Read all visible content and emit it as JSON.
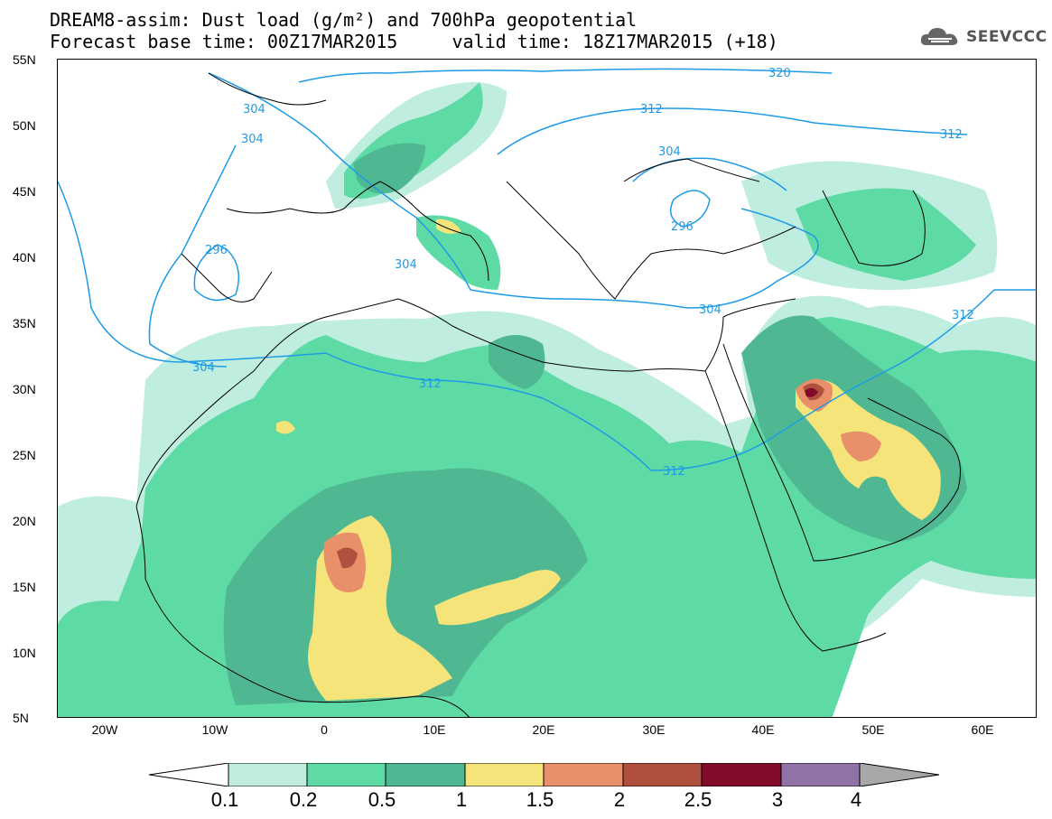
{
  "header": {
    "title_line1": "DREAM8-assim: Dust load (g/m²) and 700hPa geopotential",
    "title_line2": "Forecast base time: 00Z17MAR2015     valid time: 18Z17MAR2015 (+18)",
    "logo_text": "SEEVCCC"
  },
  "map": {
    "lat_labels": [
      "55N",
      "50N",
      "45N",
      "40N",
      "35N",
      "30N",
      "25N",
      "20N",
      "15N",
      "10N",
      "5N"
    ],
    "lon_labels": [
      "20W",
      "10W",
      "0",
      "10E",
      "20E",
      "30E",
      "40E",
      "50E",
      "60E"
    ],
    "contour_labels": [
      {
        "text": "320"
      },
      {
        "text": "312"
      },
      {
        "text": "312"
      },
      {
        "text": "304"
      },
      {
        "text": "304"
      },
      {
        "text": "304"
      },
      {
        "text": "296"
      },
      {
        "text": "296"
      },
      {
        "text": "304"
      },
      {
        "text": "304"
      },
      {
        "text": "304"
      },
      {
        "text": "312"
      },
      {
        "text": "312"
      },
      {
        "text": "312"
      }
    ],
    "colors": {
      "c01": "#bfeee0",
      "c02": "#5edaa4",
      "c05": "#4fb892",
      "c1": "#f5e47a",
      "c15": "#e8906a",
      "c2": "#b0503f",
      "c25": "#820b2a",
      "c3": "#8f73a6",
      "c4": "#a8a8a8",
      "contour": "#1e9be6"
    }
  },
  "colorbar": {
    "labels": [
      "0.1",
      "0.2",
      "0.5",
      "1",
      "1.5",
      "2",
      "2.5",
      "3",
      "4"
    ]
  }
}
